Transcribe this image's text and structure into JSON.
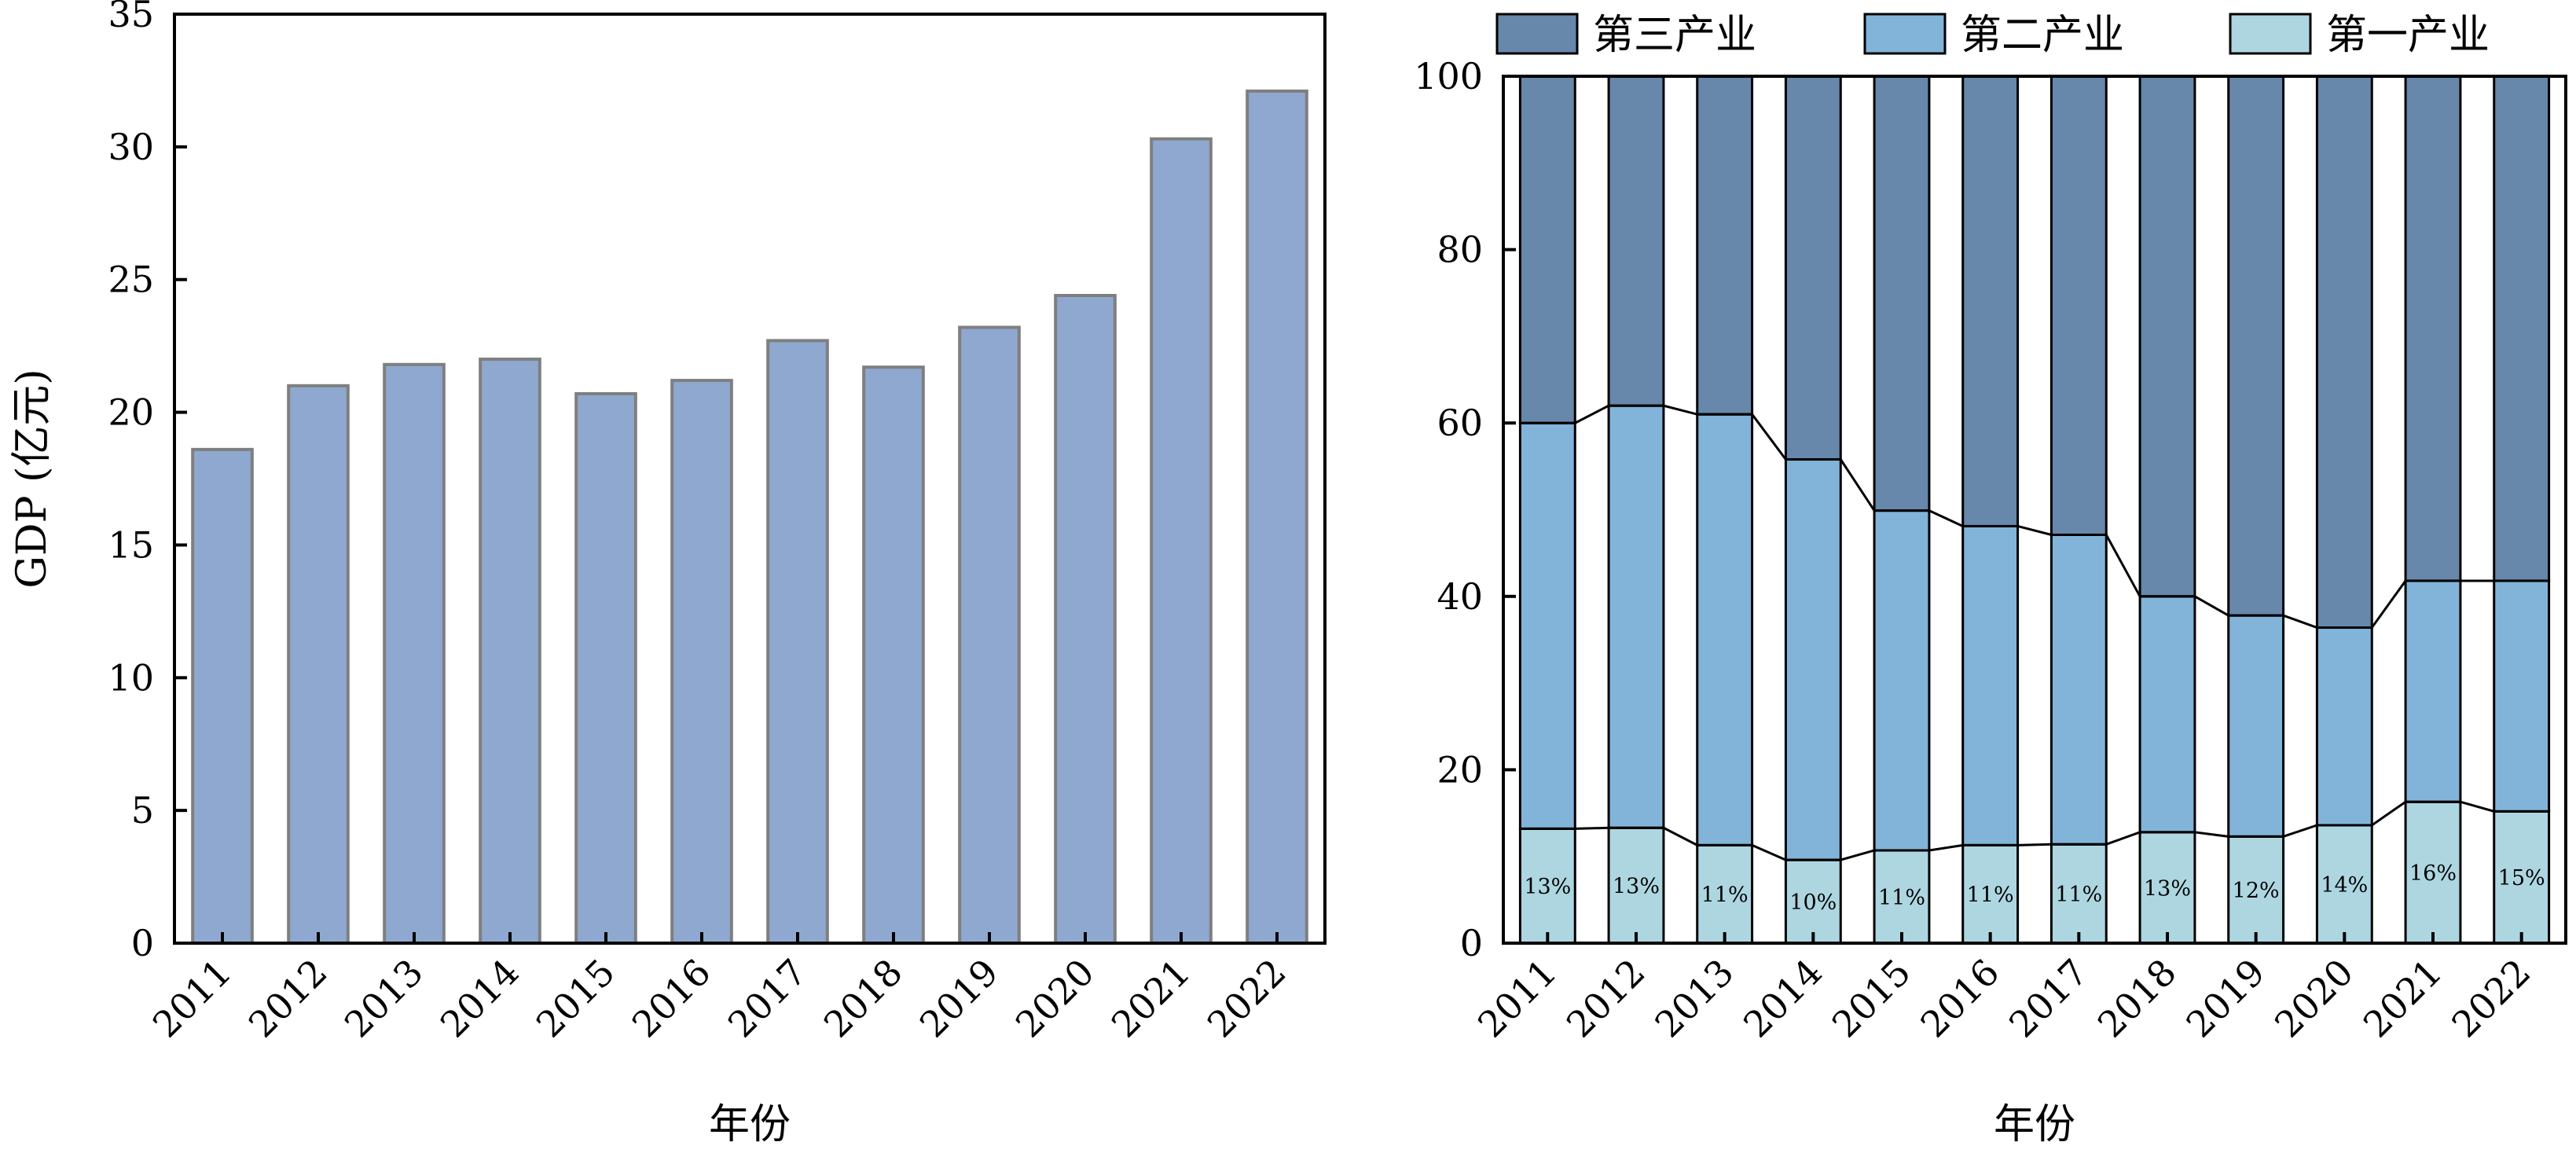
{
  "chart_data": [
    {
      "type": "bar",
      "title": "",
      "xlabel": "年份",
      "ylabel": "GDP (亿元)",
      "categories": [
        "2011",
        "2012",
        "2013",
        "2014",
        "2015",
        "2016",
        "2017",
        "2018",
        "2019",
        "2020",
        "2021",
        "2022"
      ],
      "values": [
        18.6,
        21.0,
        21.8,
        22.0,
        20.7,
        21.2,
        22.7,
        21.7,
        23.2,
        24.4,
        30.3,
        32.1
      ],
      "ylim": [
        0,
        35
      ],
      "yticks": [
        0,
        5,
        10,
        15,
        20,
        25,
        30,
        35
      ],
      "grid": false,
      "colors": {
        "bar": "#8fa8cf",
        "bar_edge": "#7f7f7f"
      }
    },
    {
      "type": "bar",
      "stacked": true,
      "title": "",
      "xlabel": "年份",
      "ylabel": "",
      "categories": [
        "2011",
        "2012",
        "2013",
        "2014",
        "2015",
        "2016",
        "2017",
        "2018",
        "2019",
        "2020",
        "2021",
        "2022"
      ],
      "series": [
        {
          "name": "第一产业",
          "color": "#add6e1",
          "values": [
            13.2,
            13.3,
            11.3,
            9.6,
            10.7,
            11.3,
            11.4,
            12.8,
            12.3,
            13.6,
            16.3,
            15.2
          ]
        },
        {
          "name": "第二产业",
          "color": "#82b4d9",
          "values": [
            46.8,
            48.7,
            49.7,
            46.2,
            39.2,
            36.8,
            35.7,
            27.2,
            25.5,
            22.8,
            25.5,
            26.6
          ]
        },
        {
          "name": "第三产业",
          "color": "#6787ab",
          "values": [
            40.0,
            38.0,
            39.0,
            44.2,
            50.1,
            51.9,
            52.9,
            60.0,
            62.2,
            63.6,
            58.2,
            58.2
          ]
        }
      ],
      "data_labels": [
        "13%",
        "13%",
        "11%",
        "10%",
        "11%",
        "11%",
        "11%",
        "13%",
        "12%",
        "14%",
        "16%",
        "15%"
      ],
      "legend_order": [
        "第三产业",
        "第二产业",
        "第一产业"
      ],
      "legend": "top",
      "ylim": [
        0,
        100
      ],
      "yticks": [
        0,
        20,
        40,
        60,
        80,
        100
      ],
      "grid": false
    }
  ]
}
